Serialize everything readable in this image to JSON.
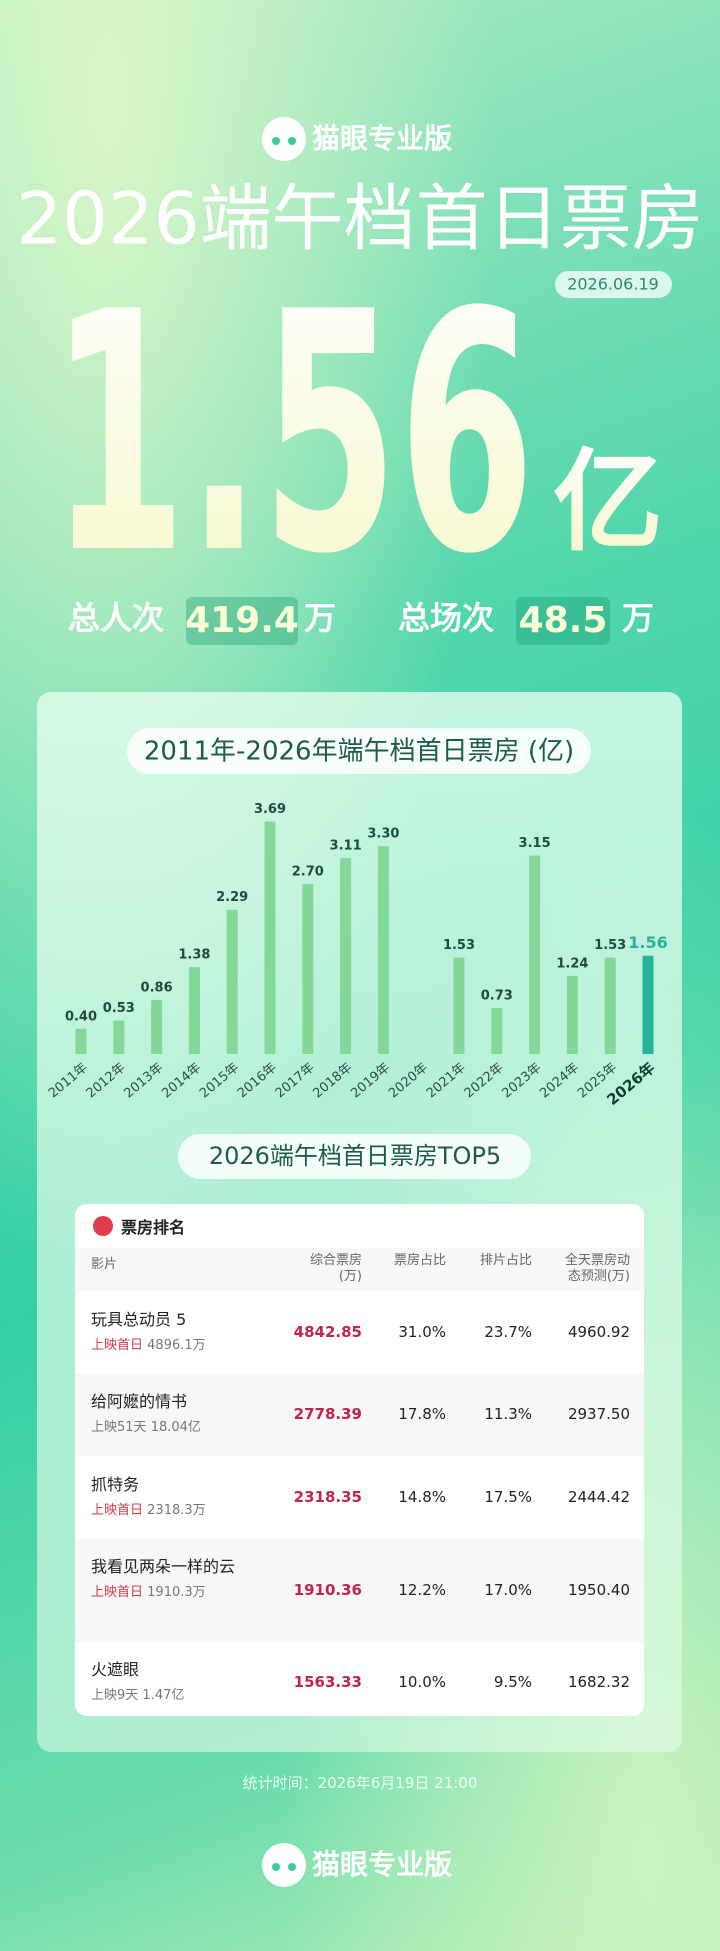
{
  "header": {
    "brand": "猫眼专业版",
    "title": "2026端午档首日票房",
    "date": "2026.06.19",
    "total": "1.56",
    "total_unit": "亿",
    "stats": [
      {
        "label": "总人次",
        "value": "419.4",
        "unit": "万"
      },
      {
        "label": "总场次",
        "value": "48.5",
        "unit": "万"
      }
    ]
  },
  "chart_data": {
    "type": "bar",
    "title": "2011年-2026年端午档首日票房 (亿)",
    "categories": [
      "2011年",
      "2012年",
      "2013年",
      "2014年",
      "2015年",
      "2016年",
      "2017年",
      "2018年",
      "2019年",
      "2020年",
      "2021年",
      "2022年",
      "2023年",
      "2024年",
      "2025年",
      "2026年"
    ],
    "values": [
      0.4,
      0.53,
      0.86,
      1.38,
      2.29,
      3.69,
      2.7,
      3.11,
      3.3,
      null,
      1.53,
      0.73,
      3.15,
      1.24,
      1.53,
      1.56
    ],
    "value_labels": [
      "0.40",
      "0.53",
      "0.86",
      "1.38",
      "2.29",
      "3.69",
      "2.70",
      "3.11",
      "3.30",
      null,
      "1.53",
      "0.73",
      "3.15",
      "1.24",
      "1.53",
      "1.56"
    ],
    "color": "#82d897",
    "highlight_color": "#25b39c",
    "highlight_index": 15,
    "ylim": [
      0,
      4
    ]
  },
  "top5": {
    "title": "2026端午档首日票房TOP5",
    "table": {
      "title": "票房排名",
      "columns": [
        "影片",
        "综合票房(万)",
        "票房占比",
        "排片占比",
        "全天票房动态预测(万)"
      ],
      "rows": [
        {
          "name": "玩具总动员 5",
          "release": "上映首日",
          "release_highlight": true,
          "release_total": "4896.1万",
          "total": "4842.85",
          "share": "31.0%",
          "schedule": "23.7%",
          "forecast": "4960.92"
        },
        {
          "name": "给阿嬷的情书",
          "release": "上映51天",
          "release_highlight": false,
          "release_total": "18.04亿",
          "total": "2778.39",
          "share": "17.8%",
          "schedule": "11.3%",
          "forecast": "2937.50"
        },
        {
          "name": "抓特务",
          "release": "上映首日",
          "release_highlight": true,
          "release_total": "2318.3万",
          "total": "2318.35",
          "share": "14.8%",
          "schedule": "17.5%",
          "forecast": "2444.42"
        },
        {
          "name": "我看见两朵一样的云",
          "release": "上映首日",
          "release_highlight": true,
          "release_total": "1910.3万",
          "total": "1910.36",
          "share": "12.2%",
          "schedule": "17.0%",
          "forecast": "1950.40"
        },
        {
          "name": "火遮眼",
          "release": "上映9天",
          "release_highlight": false,
          "release_total": "1.47亿",
          "total": "1563.33",
          "share": "10.0%",
          "schedule": "9.5%",
          "forecast": "1682.32"
        }
      ]
    }
  },
  "footer": {
    "stat_time": "统计时间：2026年6月19日 21:00",
    "brand": "猫眼专业版"
  }
}
